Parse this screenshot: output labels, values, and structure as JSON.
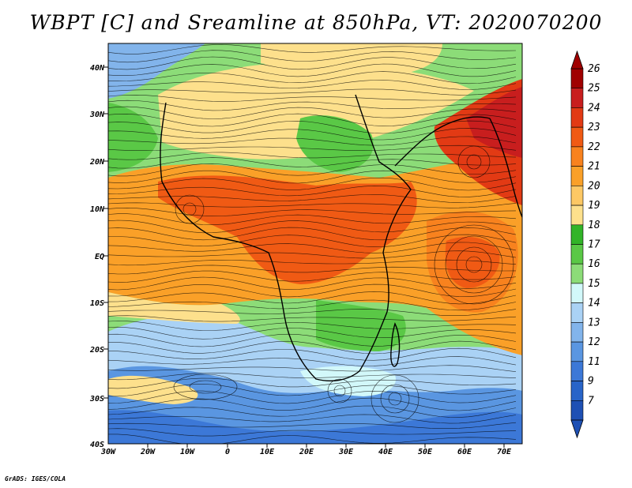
{
  "title": "WBPT [C] and Sreamline at 850hPa, VT: 2020070200",
  "credit": "GrADS: IGES/COLA",
  "lat_labels": [
    "40N",
    "30N",
    "20N",
    "10N",
    "EQ",
    "10S",
    "20S",
    "30S",
    "40S"
  ],
  "lon_labels": [
    "30W",
    "20W",
    "10W",
    "0",
    "10E",
    "20E",
    "30E",
    "40E",
    "50E",
    "60E",
    "70E"
  ],
  "colorbar": {
    "levels": [
      "26",
      "25",
      "24",
      "23",
      "22",
      "21",
      "20",
      "19",
      "18",
      "17",
      "16",
      "15",
      "14",
      "13",
      "12",
      "11",
      "9",
      "7"
    ],
    "colors": [
      "#a00000",
      "#c81e1e",
      "#e23a14",
      "#f05a14",
      "#f8821e",
      "#faa028",
      "#fdc864",
      "#fde08c",
      "#32b428",
      "#5ac846",
      "#8cdc78",
      "#d2f8fa",
      "#aad2f5",
      "#82b4eb",
      "#5a96e1",
      "#3c78d7",
      "#2864c8",
      "#1e50b4"
    ]
  }
}
